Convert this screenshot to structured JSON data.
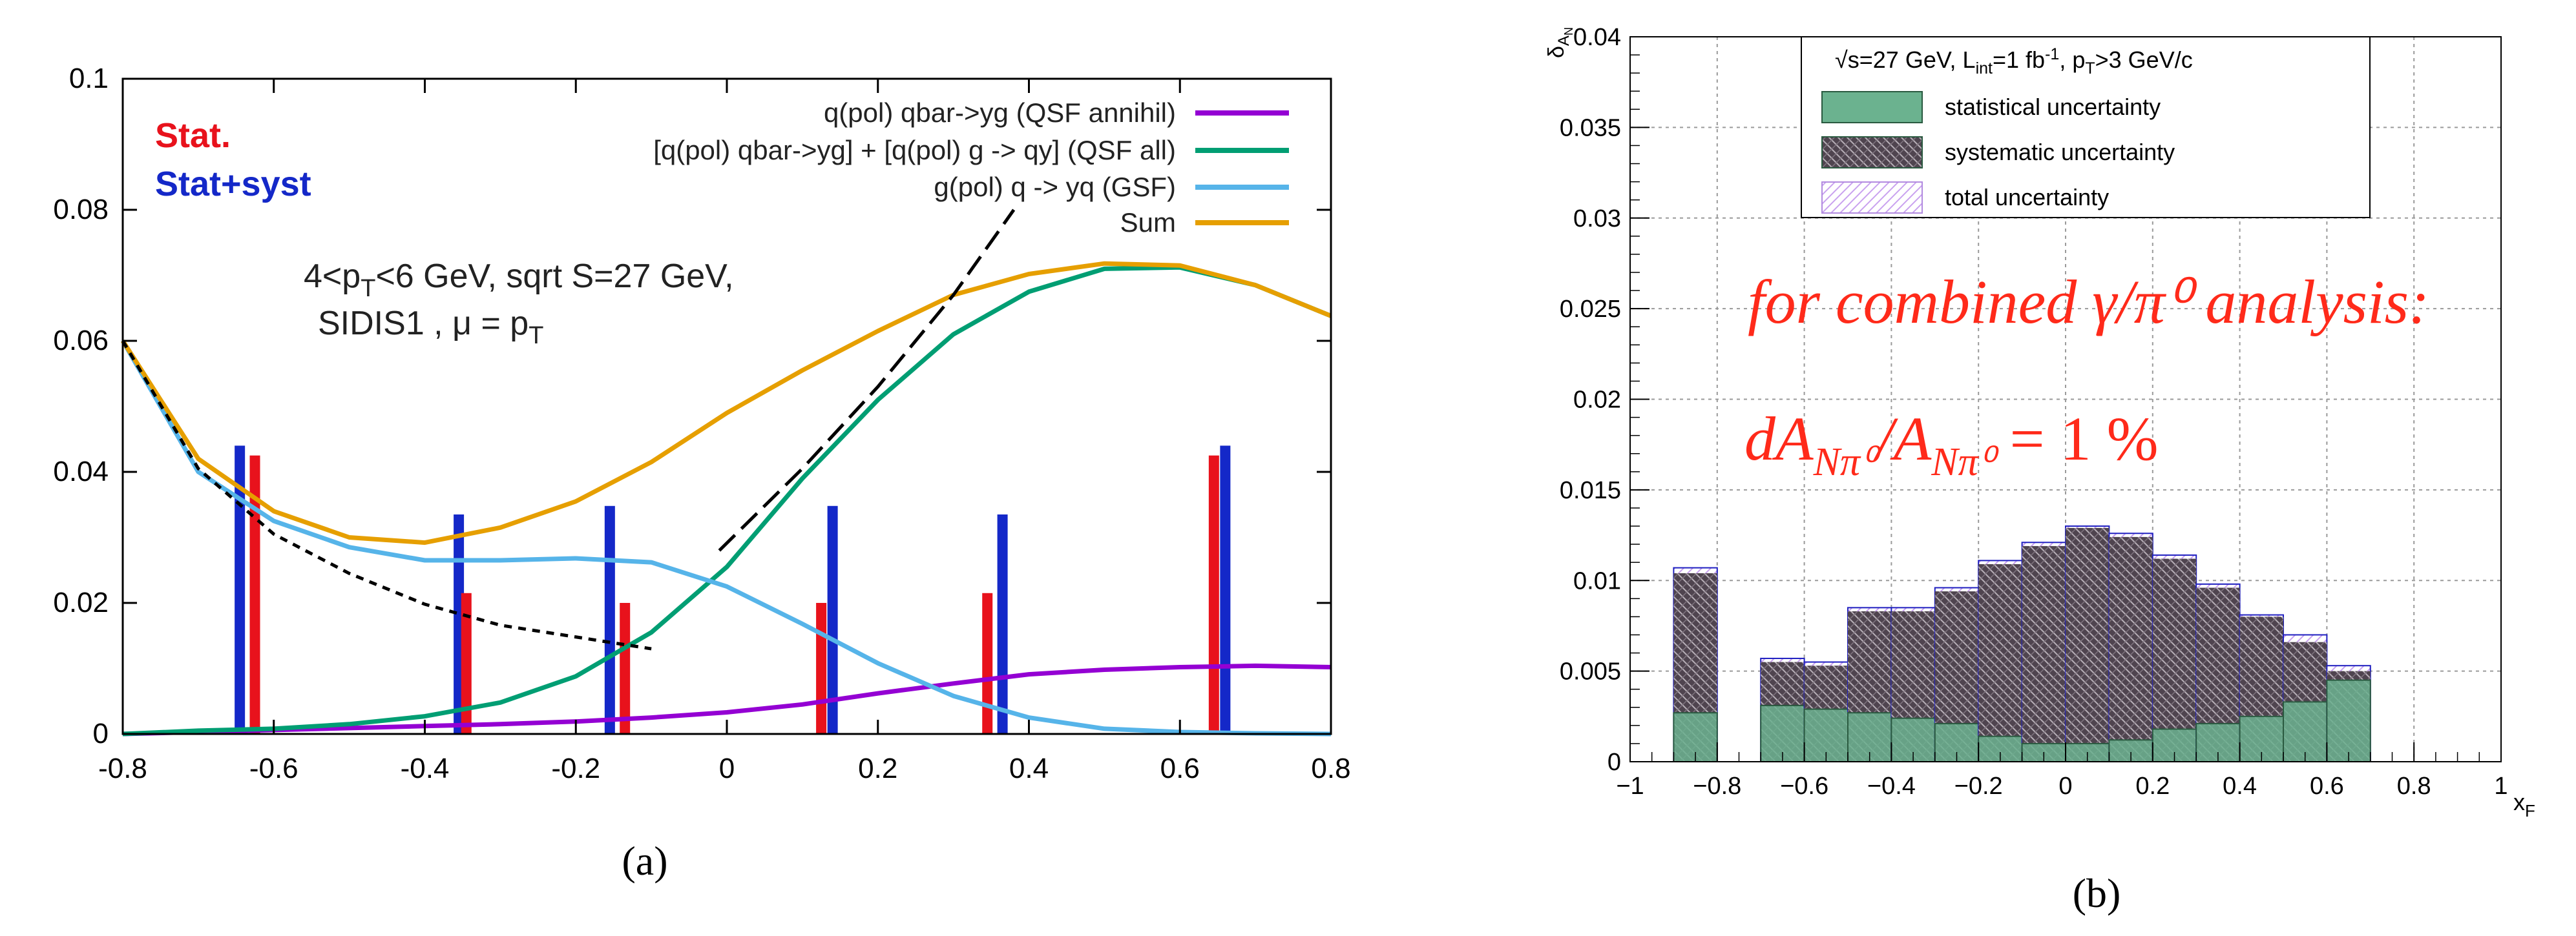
{
  "panel_a": {
    "caption": "(a)",
    "stat_label": "Stat.",
    "statsyst_label": "Stat+syst",
    "colors": {
      "stat": "#e8121c",
      "statsyst": "#1428c8",
      "qsf_annihil": "#9400d3",
      "qsf_all": "#009e73",
      "gsf": "#56b4e9",
      "sum": "#e69f00"
    },
    "annotation_line1": "4<p",
    "annotation_line1_sub": "T",
    "annotation_line1_rest": "<6 GeV, sqrt S=27 GeV,",
    "annotation_line2": "SIDIS1 , μ = p",
    "annotation_line2_sub": "T"
  },
  "panel_b": {
    "caption": "(b)",
    "legend_header": "√s=27 GeV, L",
    "legend_header_sub1": "int",
    "legend_header_mid": "=1 fb",
    "legend_header_sup": "-1",
    "legend_header_mid2": ", p",
    "legend_header_sub2": "T",
    "legend_header_end": ">3 GeV/c",
    "ylabel": "δ",
    "ylabel_sub": "A",
    "ylabel_subsub": "N",
    "xlabel": "x",
    "xlabel_sub": "F",
    "annotation_line1": "for combined γ/π⁰ analysis:",
    "annotation_line2": "dA",
    "annotation_line2_sub1": "Nπ⁰",
    "annotation_line2_mid": "/A",
    "annotation_line2_sub2": "Nπ⁰",
    "annotation_line2_end": " = 1 %",
    "colors": {
      "stat": "#6bb28f",
      "syst": "#5c4d5c",
      "total": "#b28be0",
      "annotation": "#ff2a1a"
    }
  },
  "chart_data": [
    {
      "type": "line",
      "title": "",
      "xlabel": "",
      "ylabel": "",
      "xlim": [
        -0.8,
        0.8
      ],
      "ylim": [
        0,
        0.1
      ],
      "xticks": [
        "-0.8",
        "-0.6",
        "-0.4",
        "-0.2",
        "0",
        "0.2",
        "0.4",
        "0.6",
        "0.8"
      ],
      "yticks": [
        "0",
        "0.02",
        "0.04",
        "0.06",
        "0.08",
        "0.1"
      ],
      "legend_position": "top-right",
      "series": [
        {
          "name": "q(pol) qbar->yg (QSF annihil)",
          "x": [
            -0.8,
            -0.7,
            -0.6,
            -0.5,
            -0.4,
            -0.3,
            -0.2,
            -0.1,
            0,
            0.1,
            0.2,
            0.3,
            0.4,
            0.5,
            0.6,
            0.7,
            0.8
          ],
          "y": [
            0,
            0.0003,
            0.0006,
            0.0009,
            0.0012,
            0.0015,
            0.0019,
            0.0025,
            0.0033,
            0.0045,
            0.0062,
            0.0077,
            0.0091,
            0.0098,
            0.0102,
            0.0104,
            0.0102
          ]
        },
        {
          "name": "[q(pol) qbar->yg] + [q(pol) g -> qy] (QSF all)",
          "x": [
            -0.8,
            -0.7,
            -0.6,
            -0.5,
            -0.4,
            -0.3,
            -0.2,
            -0.1,
            0,
            0.1,
            0.2,
            0.3,
            0.4,
            0.5,
            0.6,
            0.7,
            0.8
          ],
          "y": [
            0,
            0.0005,
            0.0008,
            0.0015,
            0.0027,
            0.0048,
            0.0088,
            0.0155,
            0.0255,
            0.039,
            0.051,
            0.061,
            0.0675,
            0.071,
            0.0712,
            0.0685,
            0.0638
          ]
        },
        {
          "name": "g(pol) q -> yq (GSF)",
          "x": [
            -0.8,
            -0.7,
            -0.6,
            -0.5,
            -0.4,
            -0.3,
            -0.2,
            -0.1,
            0,
            0.1,
            0.2,
            0.3,
            0.4,
            0.5,
            0.6,
            0.7,
            0.8
          ],
          "y": [
            0.06,
            0.04,
            0.0325,
            0.0285,
            0.0265,
            0.0265,
            0.0268,
            0.0262,
            0.0225,
            0.0168,
            0.0108,
            0.0058,
            0.0025,
            0.0008,
            0.0003,
            0.0001,
            0
          ]
        },
        {
          "name": "Sum",
          "x": [
            -0.8,
            -0.7,
            -0.6,
            -0.5,
            -0.4,
            -0.3,
            -0.2,
            -0.1,
            0,
            0.1,
            0.2,
            0.3,
            0.4,
            0.5,
            0.6,
            0.7,
            0.8
          ],
          "y": [
            0.06,
            0.042,
            0.034,
            0.03,
            0.0292,
            0.0315,
            0.0355,
            0.0415,
            0.049,
            0.0555,
            0.0615,
            0.067,
            0.0702,
            0.0718,
            0.0715,
            0.0685,
            0.0638
          ]
        },
        {
          "name": "",
          "style": "dashed",
          "x": [
            -0.8,
            -0.7,
            -0.6,
            -0.5,
            -0.4,
            -0.3,
            -0.2,
            -0.1
          ],
          "y": [
            0.06,
            0.0405,
            0.0305,
            0.0245,
            0.0198,
            0.0166,
            0.0148,
            0.013
          ]
        },
        {
          "name": "",
          "style": "dashed",
          "x": [
            -0.01,
            0.1,
            0.2,
            0.3,
            0.38
          ],
          "y": [
            0.028,
            0.0405,
            0.053,
            0.067,
            0.08
          ]
        },
        {
          "name": "Stat.",
          "type": "bar",
          "x": [
            -0.625,
            -0.345,
            -0.135,
            0.125,
            0.345,
            0.645
          ],
          "y": [
            0.0425,
            0.0215,
            0.02,
            0.02,
            0.0215,
            0.0425
          ]
        },
        {
          "name": "Stat+syst",
          "type": "bar",
          "x": [
            -0.645,
            -0.355,
            -0.155,
            0.14,
            0.365,
            0.66
          ],
          "y": [
            0.044,
            0.0335,
            0.0348,
            0.0348,
            0.0335,
            0.044
          ]
        }
      ]
    },
    {
      "type": "bar",
      "title": "",
      "xlabel": "x_F",
      "ylabel": "δA_N",
      "xlim": [
        -1,
        1
      ],
      "ylim": [
        0,
        0.04
      ],
      "xticks": [
        "−1",
        "−0.8",
        "−0.6",
        "−0.4",
        "−0.2",
        "0",
        "0.2",
        "0.4",
        "0.6",
        "0.8",
        "1"
      ],
      "yticks": [
        "0",
        "0.005",
        "0.01",
        "0.015",
        "0.02",
        "0.025",
        "0.03",
        "0.035",
        "0.04"
      ],
      "grid": true,
      "legend_position": "top-center",
      "bin_width": 0.1,
      "bin_left_edges": [
        -0.9,
        -0.7,
        -0.6,
        -0.5,
        -0.4,
        -0.3,
        -0.2,
        -0.1,
        0,
        0.1,
        0.2,
        0.3,
        0.4,
        0.5,
        0.6
      ],
      "series": [
        {
          "name": "statistical uncertainty",
          "values": [
            0.0027,
            0.0031,
            0.0029,
            0.0027,
            0.0024,
            0.0021,
            0.0014,
            0.001,
            0.001,
            0.0012,
            0.0018,
            0.0021,
            0.0025,
            0.0033,
            0.0045
          ]
        },
        {
          "name": "systematic uncertainty",
          "values": [
            0.0104,
            0.0055,
            0.0053,
            0.0083,
            0.0083,
            0.0094,
            0.0109,
            0.0119,
            0.0129,
            0.0124,
            0.0112,
            0.0096,
            0.008,
            0.0066,
            0.005
          ]
        },
        {
          "name": "total uncertainty",
          "values": [
            0.0107,
            0.0057,
            0.0055,
            0.0085,
            0.0085,
            0.0096,
            0.0111,
            0.0121,
            0.013,
            0.0126,
            0.0114,
            0.0098,
            0.0081,
            0.007,
            0.0053
          ]
        }
      ]
    }
  ]
}
